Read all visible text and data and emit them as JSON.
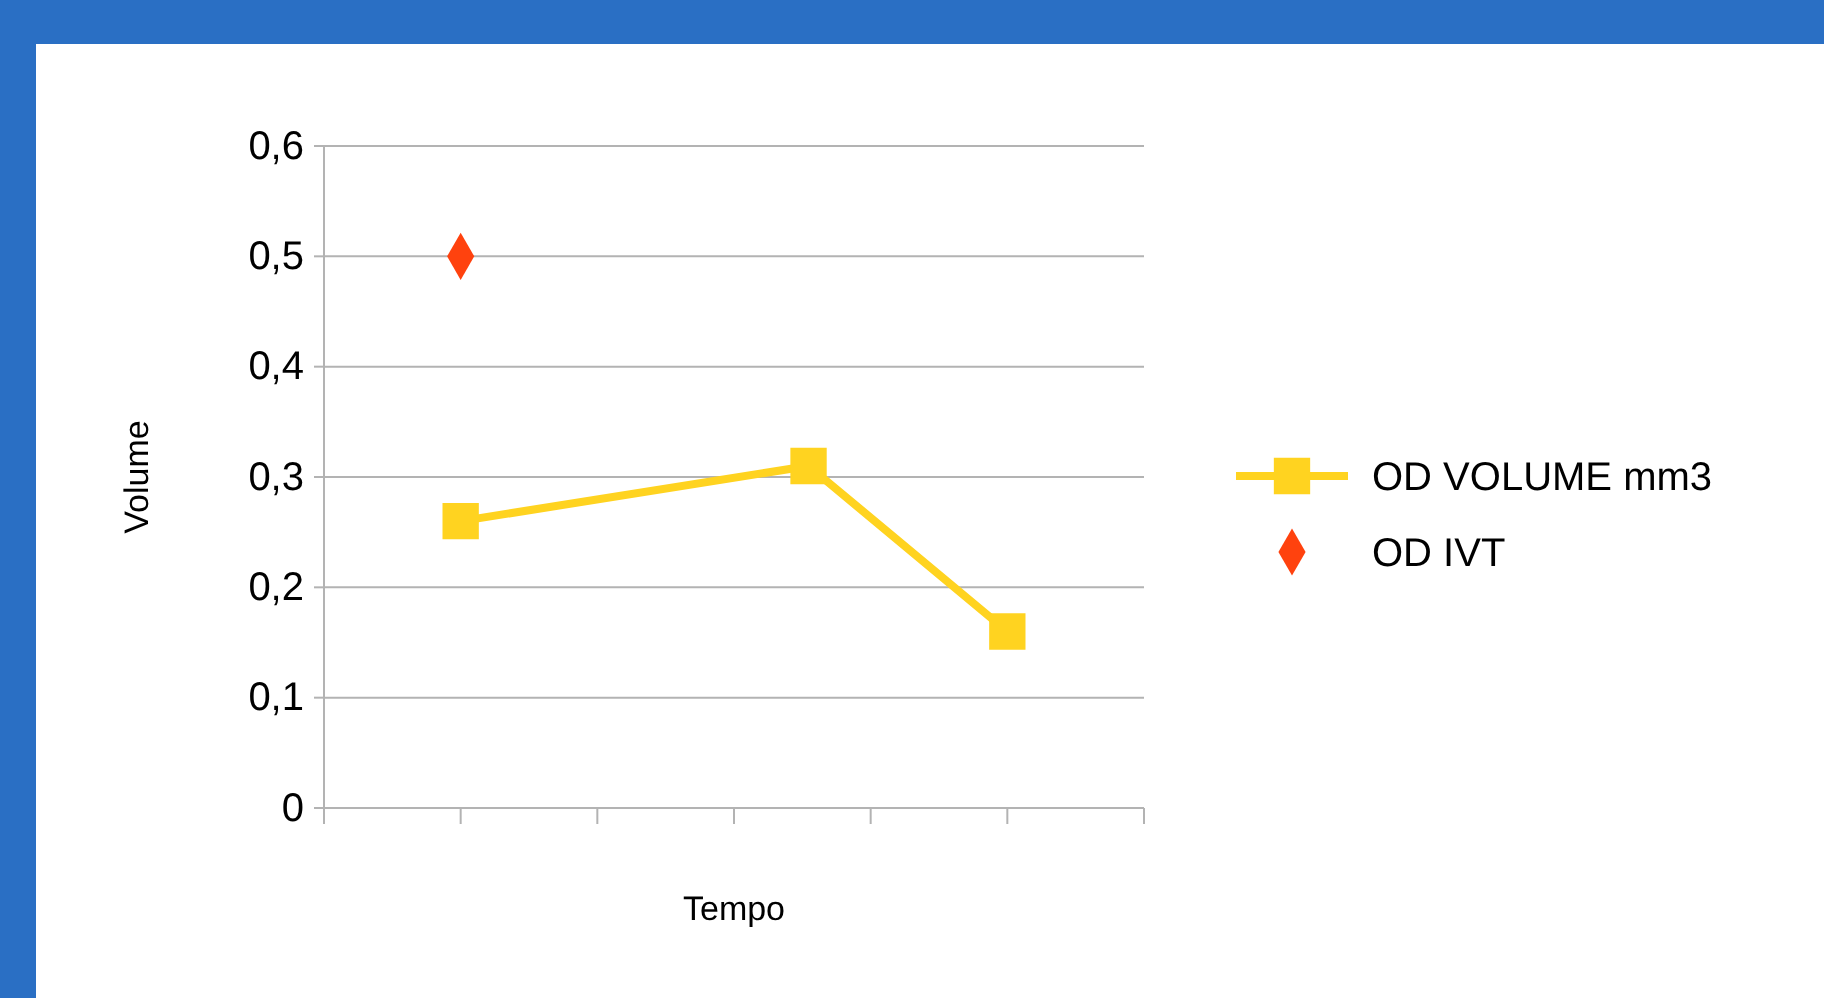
{
  "chart_data": {
    "type": "line",
    "xlabel": "Tempo",
    "ylabel": "Volume",
    "categories": [
      null,
      null,
      null,
      null,
      null,
      null,
      null,
      null,
      null,
      null,
      null,
      null,
      null,
      null,
      null,
      null,
      null,
      null,
      null,
      null,
      null,
      null,
      null,
      null,
      null,
      null,
      null,
      null,
      null,
      null,
      null,
      null,
      null
    ],
    "ylim": [
      0,
      0.6
    ],
    "yticks": [
      {
        "value": 0,
        "label": "0"
      },
      {
        "value": 0.1,
        "label": "0,1"
      },
      {
        "value": 0.2,
        "label": "0,2"
      },
      {
        "value": 0.3,
        "label": "0,3"
      },
      {
        "value": 0.4,
        "label": "0,4"
      },
      {
        "value": 0.5,
        "label": "0,5"
      },
      {
        "value": 0.6,
        "label": "0,6"
      }
    ],
    "grid": "y",
    "legend": "right",
    "series": [
      {
        "name": "OD VOLUME mm3",
        "color": "#ffd320",
        "marker": "square",
        "values": [
          null,
          null,
          null,
          null,
          null,
          0.26,
          null,
          null,
          null,
          null,
          null,
          null,
          null,
          null,
          null,
          null,
          null,
          null,
          null,
          0.31,
          null,
          null,
          null,
          null,
          null,
          null,
          null,
          0.16,
          null,
          null,
          null,
          null,
          null
        ]
      },
      {
        "name": "OD IVT",
        "type": "scatter",
        "color": "#ff420e",
        "marker": "diamond",
        "values": [
          null,
          null,
          null,
          null,
          null,
          0.5,
          null,
          null,
          null,
          null,
          null,
          null,
          null,
          null,
          null,
          null,
          null,
          null,
          null,
          null,
          null,
          null,
          null,
          null,
          null,
          null,
          null,
          null,
          null,
          null,
          null,
          null,
          null
        ]
      }
    ]
  }
}
